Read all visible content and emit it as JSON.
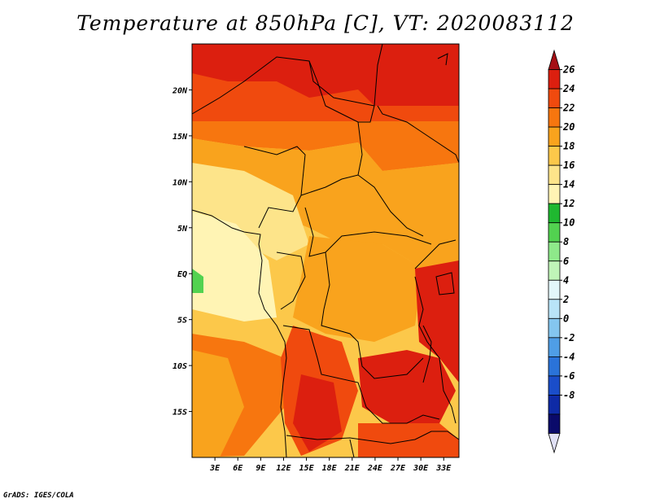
{
  "title": "Temperature at 850hPa [C], VT: 2020083112",
  "footer": "GrADS: IGES/COLA",
  "map": {
    "lat_labels": [
      "20N",
      "15N",
      "10N",
      "5N",
      "EQ",
      "5S",
      "10S",
      "15S"
    ],
    "lat_values": [
      20,
      15,
      10,
      5,
      0,
      -5,
      -10,
      -15
    ],
    "lon_labels": [
      "3E",
      "6E",
      "9E",
      "12E",
      "15E",
      "18E",
      "21E",
      "24E",
      "27E",
      "30E",
      "33E"
    ],
    "lon_values": [
      3,
      6,
      9,
      12,
      15,
      18,
      21,
      24,
      27,
      30,
      33
    ],
    "lon_range": [
      0,
      35
    ],
    "lat_range": [
      -20,
      25
    ]
  },
  "colorbar": {
    "labels": [
      "26",
      "24",
      "22",
      "20",
      "18",
      "16",
      "14",
      "12",
      "10",
      "8",
      "6",
      "4",
      "2",
      "0",
      "-2",
      "-4",
      "-6",
      "-8"
    ],
    "colors": [
      "#a50f15",
      "#dc1f0f",
      "#f04a0e",
      "#f7760f",
      "#f9a31d",
      "#fcc84a",
      "#fde48a",
      "#fff4b4",
      "#1fb830",
      "#52d250",
      "#8ee98a",
      "#c0f5b8",
      "#e3f7fa",
      "#b9e4f8",
      "#84c6ef",
      "#4f9ee6",
      "#2a73d9",
      "#1a4dc9",
      "#0e2aa6",
      "#0a0a6a",
      "#e0e0f5"
    ]
  }
}
